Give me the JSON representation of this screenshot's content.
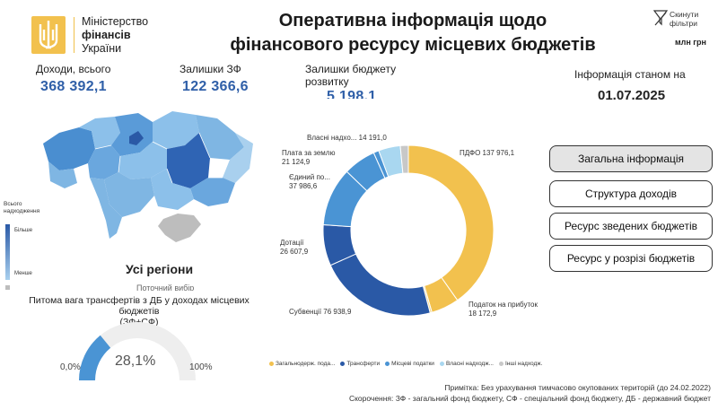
{
  "header": {
    "logo_line1": "Міністерство",
    "logo_line2": "фінансів",
    "logo_line3": "України",
    "title_line1": "Оперативна інформація щодо",
    "title_line2": "фінансового ресурсу місцевих бюджетів",
    "reset_label_line1": "Скинути",
    "reset_label_line2": "фільтри",
    "units": "млн грн"
  },
  "kpis": [
    {
      "label": "Доходи, всього",
      "value": "368 392,1"
    },
    {
      "label": "Залишки ЗФ",
      "value": "122 366,6"
    },
    {
      "label_line1": "Залишки бюджету",
      "label_line2": "розвитку",
      "value": "5 198,1"
    }
  ],
  "as_of": {
    "label": "Інформація станом на",
    "date": "01.07.2025"
  },
  "map": {
    "legend_title_line1": "Всього",
    "legend_title_line2": "надходження",
    "legend_max": "Більше",
    "legend_min": "Менше",
    "region": "Усі регіони",
    "region_sub": "Поточний вибір",
    "colors": {
      "high": "#2a59a6",
      "low": "#a9d0ee",
      "no_data": "#bdbdbd"
    }
  },
  "transfer_gauge": {
    "title_line1": "Питома вага трансфертів з ДБ у доходах місцевих бюджетів",
    "title_line2": "(ЗФ+СФ)",
    "min_label": "0,0%",
    "max_label": "100%",
    "value_label": "28,1%",
    "value": 28.1,
    "color": "#4a94d4",
    "track_color": "#eeeeee"
  },
  "donut": {
    "segments": [
      {
        "name": "ПДФО",
        "label": "ПДФО 137 976,1",
        "value": 137976.1,
        "color": "#f2c14e"
      },
      {
        "name": "Податок на прибуток",
        "label_line1": "Податок на прибуток",
        "label_line2": "18 172,9",
        "value": 18172.9,
        "color": "#f2c14e"
      },
      {
        "name": "Інші загальнодерж.",
        "value": 1200,
        "color": "#f0d58a"
      },
      {
        "name": "Субвенції",
        "label": "Субвенції 76 938,9",
        "value": 76938.9,
        "color": "#2a59a6"
      },
      {
        "name": "Дотації",
        "label_line1": "Дотації",
        "label_line2": "26 607,9",
        "value": 26607.9,
        "color": "#2a59a6"
      },
      {
        "name": "Єдиний по...",
        "label_line1": "Єдиний по...",
        "label_line2": "37 986,6",
        "value": 37986.6,
        "color": "#4a94d4"
      },
      {
        "name": "Плата за землю",
        "label_line1": "Плата за землю",
        "label_line2": "21 124,9",
        "value": 21124.9,
        "color": "#4a94d4"
      },
      {
        "name": "Інші місцеві",
        "value": 3500,
        "color": "#4a94d4"
      },
      {
        "name": "Власні надхо...",
        "label": "Власні надхо... 14 191,0",
        "value": 14191.0,
        "color": "#a9d7f0"
      },
      {
        "name": "Інші",
        "value": 5200,
        "color": "#c8c8c8"
      }
    ],
    "legend": [
      {
        "label": "Загальнодерж. пода...",
        "color": "#f2c14e"
      },
      {
        "label": "Трансферти",
        "color": "#2a59a6"
      },
      {
        "label": "Місцеві податки",
        "color": "#4a94d4"
      },
      {
        "label": "Власні надходж...",
        "color": "#a9d7f0"
      },
      {
        "label": "Інші надходж.",
        "color": "#c8c8c8"
      }
    ]
  },
  "nav": [
    {
      "label": "Загальна інформація",
      "active": true
    },
    {
      "label": "Структура доходів",
      "active": false
    },
    {
      "label": "Ресурс зведених бюджетів",
      "active": false
    },
    {
      "label": "Ресурс у розрізі бюджетів",
      "active": false
    }
  ],
  "notes": {
    "note": "Примітка: Без урахування тимчасово окупованих територій (до 24.02.2022)",
    "abbr": "Скорочення: ЗФ - загальний фонд бюджету, СФ - спеціальний фонд бюджету, ДБ - державний бюджет"
  }
}
